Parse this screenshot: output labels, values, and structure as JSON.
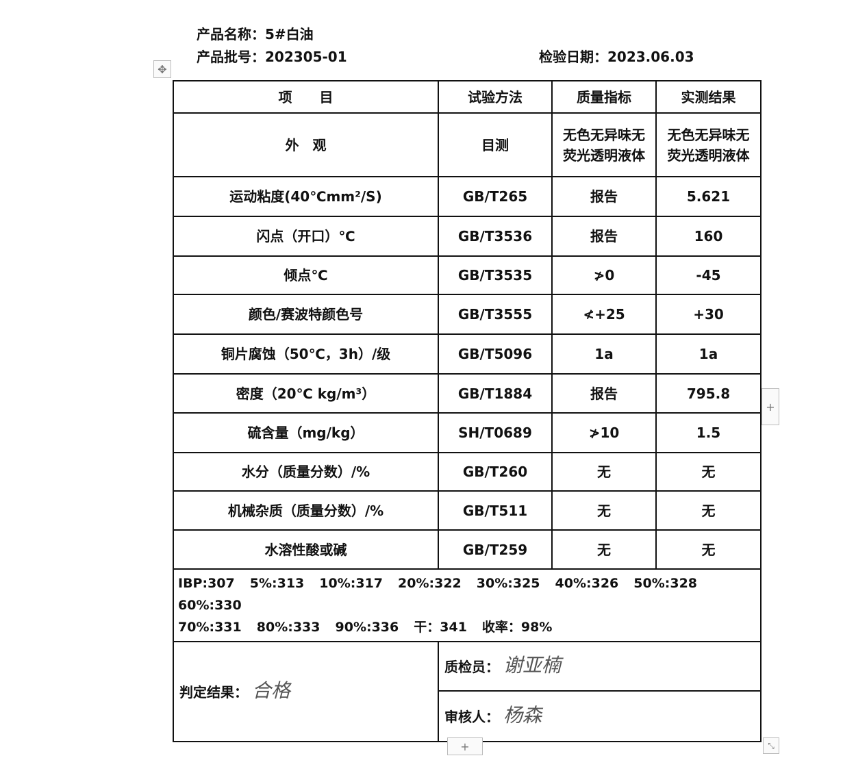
{
  "header": {
    "product_name": "产品名称：5#白油",
    "batch_no": "产品批号：202305-01",
    "inspection_date": "检验日期：2023.06.03"
  },
  "columns": [
    "项　　目",
    "试验方法",
    "质量指标",
    "实测结果"
  ],
  "rows": [
    {
      "item": "外　观",
      "method": "目测",
      "spec": "无色无异味无荧光透明液体",
      "result": "无色无异味无荧光透明液体"
    },
    {
      "item": "运动粘度(40℃mm²/S)",
      "method": "GB/T265",
      "spec": "报告",
      "result": "5.621"
    },
    {
      "item": "闪点（开口）℃",
      "method": "GB/T3536",
      "spec": "报告",
      "result": "160"
    },
    {
      "item": "倾点℃",
      "method": "GB/T3535",
      "spec": "≯0",
      "result": "-45"
    },
    {
      "item": "颜色/赛波特颜色号",
      "method": "GB/T3555",
      "spec": "≮+25",
      "result": "+30"
    },
    {
      "item": "铜片腐蚀（50℃，3h）/级",
      "method": "GB/T5096",
      "spec": "1a",
      "result": "1a"
    },
    {
      "item": "密度（20℃ kg/m³）",
      "method": "GB/T1884",
      "spec": "报告",
      "result": "795.8"
    },
    {
      "item": "硫含量（mg/kg）",
      "method": "SH/T0689",
      "spec": "≯10",
      "result": "1.5"
    },
    {
      "item": "水分（质量分数）/%",
      "method": "GB/T260",
      "spec": "无",
      "result": "无"
    },
    {
      "item": "机械杂质（质量分数）/%",
      "method": "GB/T511",
      "spec": "无",
      "result": "无"
    },
    {
      "item": "水溶性酸或碱",
      "method": "GB/T259",
      "spec": "无",
      "result": "无"
    }
  ],
  "distillation": [
    "IBP:307",
    "5%:313",
    "10%:317",
    "20%:322",
    "30%:325",
    "40%:326",
    "50%:328",
    "60%:330",
    "70%:331",
    "80%:333",
    "90%:336",
    "干：341",
    "收率：98%"
  ],
  "footer": {
    "judgement_label": "判定结果：",
    "judgement_signature": "合格",
    "inspector_label": "质检员：",
    "inspector_signature": "谢亚楠",
    "reviewer_label": "审核人：",
    "reviewer_signature": "杨森"
  },
  "icons": [
    "move-handle-icon",
    "add-column-icon",
    "add-row-icon",
    "resize-handle-icon"
  ]
}
